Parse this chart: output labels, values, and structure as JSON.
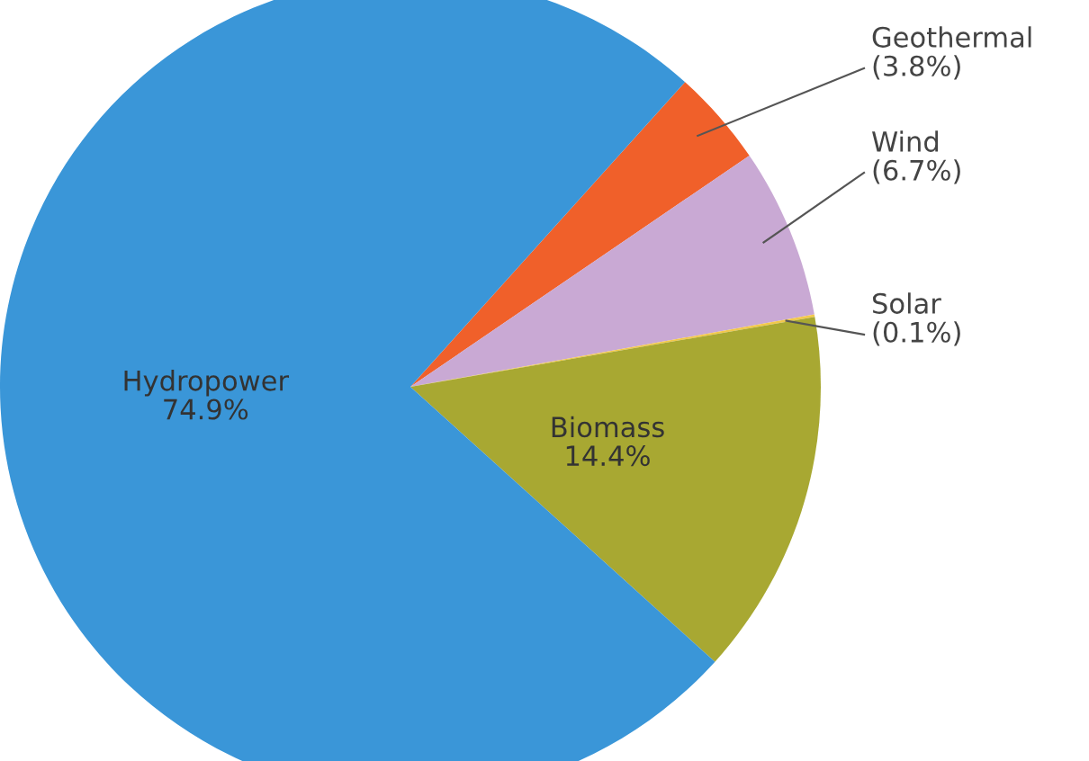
{
  "chart_data": {
    "type": "pie",
    "categories": [
      "Geothermal",
      "Wind",
      "Solar",
      "Biomass",
      "Hydropower"
    ],
    "values": [
      3.8,
      6.7,
      0.1,
      14.4,
      74.9
    ],
    "value_labels": [
      "(3.8%)",
      "(6.7%)",
      "(0.1%)",
      "14.4%",
      "74.9%"
    ],
    "colors": [
      "#f0602a",
      "#c9a9d4",
      "#f2c84b",
      "#a8a832",
      "#3a96d8"
    ]
  }
}
